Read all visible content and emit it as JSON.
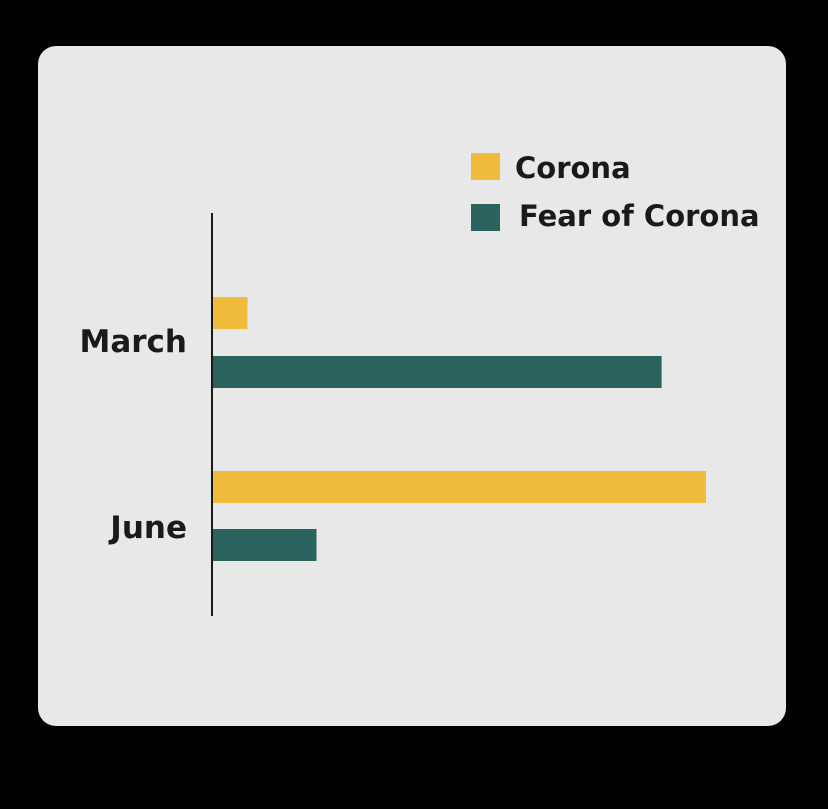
{
  "chart_data": {
    "type": "bar",
    "orientation": "horizontal",
    "categories": [
      "March",
      "June"
    ],
    "series": [
      {
        "name": "Corona",
        "color": "#f0bb3d",
        "values": [
          7,
          100
        ]
      },
      {
        "name": "Fear of Corona",
        "color": "#2b635e",
        "values": [
          91,
          21
        ]
      }
    ],
    "xlim": [
      0,
      100
    ],
    "axis_ticks_visible": false,
    "grid": false,
    "legend_position": "top-right",
    "title": "",
    "xlabel": "",
    "ylabel": ""
  },
  "colors": {
    "page_background": "#000000",
    "panel_background": "#e8e8e8",
    "axis_line": "#1a1a1a"
  }
}
